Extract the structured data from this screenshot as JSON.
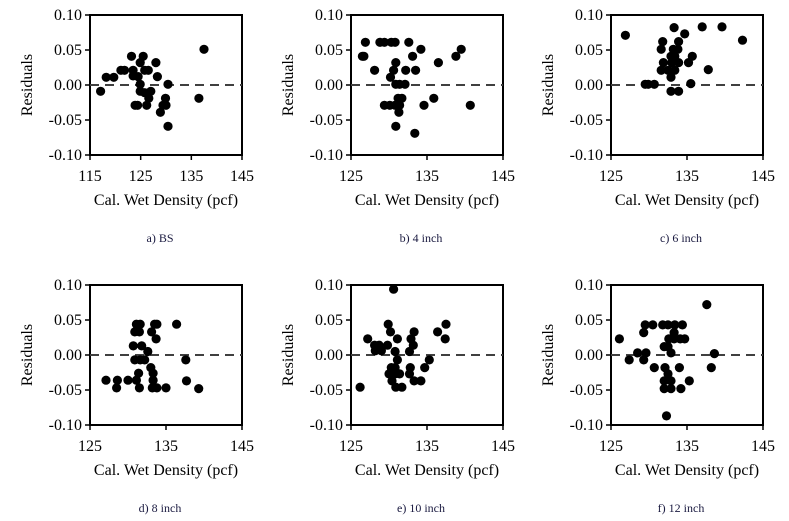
{
  "figure": {
    "marker_color": "#000000",
    "zero_line_color": "#404040",
    "caption_color": "#1a1a40"
  },
  "chart_data": [
    {
      "type": "scatter",
      "caption": "a) BS",
      "xlabel": "Cal. Wet Density (pcf)",
      "ylabel": "Residuals",
      "xlim": [
        115,
        145
      ],
      "ylim": [
        -0.1,
        0.1
      ],
      "xticks": [
        "115",
        "125",
        "135",
        "145"
      ],
      "xtick_values": [
        115,
        125,
        135,
        145
      ],
      "yticks": [
        "0.10",
        "0.05",
        "0.00",
        "-0.05",
        "-0.10"
      ],
      "ytick_values": [
        0.1,
        0.05,
        0.0,
        -0.05,
        -0.1
      ],
      "reference_line": {
        "y": 0,
        "style": "dashed"
      },
      "grid": false,
      "points": [
        [
          117.1,
          -0.009
        ],
        [
          118.2,
          0.011
        ],
        [
          119.7,
          0.011
        ],
        [
          121.1,
          0.021
        ],
        [
          121.8,
          0.021
        ],
        [
          123.2,
          0.041
        ],
        [
          125.5,
          0.041
        ],
        [
          124.9,
          0.032
        ],
        [
          128.0,
          0.032
        ],
        [
          123.5,
          0.021
        ],
        [
          125.8,
          0.021
        ],
        [
          126.5,
          0.021
        ],
        [
          123.5,
          0.013
        ],
        [
          124.5,
          0.012
        ],
        [
          128.3,
          0.012
        ],
        [
          124.9,
          0.001
        ],
        [
          130.4,
          0.001
        ],
        [
          124.9,
          -0.009
        ],
        [
          125.8,
          -0.011
        ],
        [
          127.0,
          -0.009
        ],
        [
          126.6,
          -0.019
        ],
        [
          129.9,
          -0.019
        ],
        [
          123.9,
          -0.029
        ],
        [
          124.4,
          -0.029
        ],
        [
          126.2,
          -0.029
        ],
        [
          129.4,
          -0.029
        ],
        [
          130.0,
          -0.029
        ],
        [
          128.9,
          -0.039
        ],
        [
          130.4,
          -0.059
        ],
        [
          136.5,
          -0.019
        ],
        [
          137.5,
          0.051
        ]
      ]
    },
    {
      "type": "scatter",
      "caption": "b) 4 inch",
      "xlabel": "Cal. Wet Density (pcf)",
      "ylabel": "Residuals",
      "xlim": [
        125,
        145
      ],
      "ylim": [
        -0.1,
        0.1
      ],
      "xticks": [
        "125",
        "135",
        "145"
      ],
      "xtick_values": [
        125,
        135,
        145
      ],
      "yticks": [
        "0.10",
        "0.05",
        "0.00",
        "-0.05",
        "-0.10"
      ],
      "ytick_values": [
        0.1,
        0.05,
        0.0,
        -0.05,
        -0.1
      ],
      "reference_line": {
        "y": 0,
        "style": "dashed"
      },
      "grid": false,
      "points": [
        [
          126.9,
          0.061
        ],
        [
          128.8,
          0.061
        ],
        [
          129.4,
          0.061
        ],
        [
          130.3,
          0.061
        ],
        [
          130.8,
          0.061
        ],
        [
          132.6,
          0.061
        ],
        [
          126.5,
          0.041
        ],
        [
          126.7,
          0.041
        ],
        [
          134.2,
          0.051
        ],
        [
          133.1,
          0.041
        ],
        [
          138.8,
          0.041
        ],
        [
          139.5,
          0.051
        ],
        [
          136.5,
          0.032
        ],
        [
          130.9,
          0.032
        ],
        [
          128.1,
          0.021
        ],
        [
          130.6,
          0.021
        ],
        [
          132.2,
          0.021
        ],
        [
          133.5,
          0.021
        ],
        [
          130.2,
          0.011
        ],
        [
          130.9,
          0.001
        ],
        [
          131.4,
          0.001
        ],
        [
          132.1,
          0.001
        ],
        [
          131.2,
          -0.019
        ],
        [
          131.7,
          -0.019
        ],
        [
          135.9,
          -0.019
        ],
        [
          129.4,
          -0.029
        ],
        [
          130.1,
          -0.029
        ],
        [
          130.8,
          -0.029
        ],
        [
          131.4,
          -0.029
        ],
        [
          134.6,
          -0.029
        ],
        [
          140.7,
          -0.029
        ],
        [
          131.3,
          -0.039
        ],
        [
          130.9,
          -0.059
        ],
        [
          133.4,
          -0.069
        ]
      ]
    },
    {
      "type": "scatter",
      "caption": "c) 6 inch",
      "xlabel": "Cal. Wet Density (pcf)",
      "ylabel": "Residuals",
      "xlim": [
        125,
        145
      ],
      "ylim": [
        -0.1,
        0.1
      ],
      "xticks": [
        "125",
        "135",
        "145"
      ],
      "xtick_values": [
        125,
        135,
        145
      ],
      "yticks": [
        "0.10",
        "0.05",
        "0.00",
        "-0.05",
        "-0.10"
      ],
      "ytick_values": [
        0.1,
        0.05,
        0.0,
        -0.05,
        -0.1
      ],
      "reference_line": {
        "y": 0,
        "style": "dashed"
      },
      "grid": false,
      "points": [
        [
          126.9,
          0.071
        ],
        [
          133.3,
          0.082
        ],
        [
          137.0,
          0.083
        ],
        [
          139.6,
          0.083
        ],
        [
          142.3,
          0.064
        ],
        [
          134.7,
          0.073
        ],
        [
          133.9,
          0.062
        ],
        [
          131.8,
          0.062
        ],
        [
          131.6,
          0.051
        ],
        [
          133.2,
          0.051
        ],
        [
          133.8,
          0.051
        ],
        [
          132.9,
          0.041
        ],
        [
          133.4,
          0.041
        ],
        [
          135.7,
          0.041
        ],
        [
          131.9,
          0.032
        ],
        [
          133.0,
          0.032
        ],
        [
          133.9,
          0.032
        ],
        [
          135.2,
          0.032
        ],
        [
          131.6,
          0.021
        ],
        [
          132.5,
          0.021
        ],
        [
          133.4,
          0.021
        ],
        [
          137.8,
          0.022
        ],
        [
          132.9,
          0.011
        ],
        [
          129.5,
          0.001
        ],
        [
          129.9,
          0.001
        ],
        [
          130.7,
          0.001
        ],
        [
          135.5,
          0.002
        ],
        [
          132.9,
          -0.009
        ],
        [
          133.9,
          -0.009
        ]
      ]
    },
    {
      "type": "scatter",
      "caption": "d) 8 inch",
      "xlabel": "Cal. Wet Density (pcf)",
      "ylabel": "Residuals",
      "xlim": [
        125,
        145
      ],
      "ylim": [
        -0.1,
        0.1
      ],
      "xticks": [
        "125",
        "135",
        "145"
      ],
      "xtick_values": [
        125,
        135,
        145
      ],
      "yticks": [
        "0.10",
        "0.05",
        "0.00",
        "-0.05",
        "-0.10"
      ],
      "ytick_values": [
        0.1,
        0.05,
        0.0,
        -0.05,
        -0.1
      ],
      "reference_line": {
        "y": 0,
        "style": "dashed"
      },
      "grid": false,
      "points": [
        [
          131.1,
          0.044
        ],
        [
          131.6,
          0.044
        ],
        [
          130.9,
          0.033
        ],
        [
          131.5,
          0.033
        ],
        [
          133.5,
          0.044
        ],
        [
          133.8,
          0.044
        ],
        [
          133.1,
          0.033
        ],
        [
          133.7,
          0.023
        ],
        [
          136.4,
          0.044
        ],
        [
          130.7,
          0.013
        ],
        [
          131.8,
          0.013
        ],
        [
          132.6,
          0.005
        ],
        [
          130.9,
          -0.007
        ],
        [
          131.6,
          -0.007
        ],
        [
          132.2,
          -0.007
        ],
        [
          133.0,
          -0.018
        ],
        [
          137.6,
          -0.007
        ],
        [
          131.4,
          -0.026
        ],
        [
          133.3,
          -0.026
        ],
        [
          127.1,
          -0.036
        ],
        [
          128.6,
          -0.036
        ],
        [
          130.0,
          -0.036
        ],
        [
          131.1,
          -0.036
        ],
        [
          133.3,
          -0.036
        ],
        [
          137.7,
          -0.037
        ],
        [
          128.5,
          -0.047
        ],
        [
          131.5,
          -0.047
        ],
        [
          133.2,
          -0.047
        ],
        [
          133.8,
          -0.047
        ],
        [
          135.0,
          -0.047
        ],
        [
          139.3,
          -0.048
        ]
      ]
    },
    {
      "type": "scatter",
      "caption": "e) 10 inch",
      "xlabel": "Cal. Wet Density (pcf)",
      "ylabel": "Residuals",
      "xlim": [
        125,
        145
      ],
      "ylim": [
        -0.1,
        0.1
      ],
      "xticks": [
        "125",
        "135",
        "145"
      ],
      "xtick_values": [
        125,
        135,
        145
      ],
      "yticks": [
        "0.10",
        "0.05",
        "0.00",
        "-0.05",
        "-0.10"
      ],
      "ytick_values": [
        0.1,
        0.05,
        0.0,
        -0.05,
        -0.1
      ],
      "reference_line": {
        "y": 0,
        "style": "dashed"
      },
      "grid": false,
      "points": [
        [
          130.6,
          0.094
        ],
        [
          129.9,
          0.044
        ],
        [
          137.5,
          0.044
        ],
        [
          130.2,
          0.033
        ],
        [
          133.3,
          0.033
        ],
        [
          136.4,
          0.033
        ],
        [
          127.2,
          0.023
        ],
        [
          131.1,
          0.023
        ],
        [
          132.9,
          0.023
        ],
        [
          137.4,
          0.023
        ],
        [
          128.1,
          0.014
        ],
        [
          128.7,
          0.014
        ],
        [
          129.8,
          0.014
        ],
        [
          133.2,
          0.014
        ],
        [
          128.2,
          0.006
        ],
        [
          129.0,
          0.006
        ],
        [
          130.8,
          0.005
        ],
        [
          132.7,
          0.005
        ],
        [
          131.1,
          -0.007
        ],
        [
          135.3,
          -0.007
        ],
        [
          134.7,
          -0.018
        ],
        [
          130.3,
          -0.018
        ],
        [
          130.8,
          -0.018
        ],
        [
          132.8,
          -0.018
        ],
        [
          130.0,
          -0.027
        ],
        [
          130.8,
          -0.027
        ],
        [
          131.4,
          -0.027
        ],
        [
          132.7,
          -0.027
        ],
        [
          130.4,
          -0.037
        ],
        [
          133.3,
          -0.037
        ],
        [
          134.2,
          -0.037
        ],
        [
          126.2,
          -0.046
        ],
        [
          130.9,
          -0.046
        ],
        [
          131.7,
          -0.046
        ]
      ]
    },
    {
      "type": "scatter",
      "caption": "f) 12 inch",
      "xlabel": "Cal. Wet Density (pcf)",
      "ylabel": "Residuals",
      "xlim": [
        125,
        145
      ],
      "ylim": [
        -0.1,
        0.1
      ],
      "xticks": [
        "125",
        "135",
        "145"
      ],
      "xtick_values": [
        125,
        135,
        145
      ],
      "yticks": [
        "0.10",
        "0.05",
        "0.00",
        "-0.05",
        "-0.10"
      ],
      "ytick_values": [
        0.1,
        0.05,
        0.0,
        -0.05,
        -0.1
      ],
      "reference_line": {
        "y": 0,
        "style": "dashed"
      },
      "grid": false,
      "points": [
        [
          137.6,
          0.072
        ],
        [
          129.5,
          0.043
        ],
        [
          130.5,
          0.043
        ],
        [
          131.8,
          0.043
        ],
        [
          132.5,
          0.043
        ],
        [
          133.4,
          0.043
        ],
        [
          134.4,
          0.043
        ],
        [
          129.3,
          0.032
        ],
        [
          133.3,
          0.032
        ],
        [
          126.1,
          0.023
        ],
        [
          132.6,
          0.023
        ],
        [
          133.3,
          0.023
        ],
        [
          134.1,
          0.023
        ],
        [
          134.7,
          0.023
        ],
        [
          132.0,
          0.012
        ],
        [
          132.5,
          0.012
        ],
        [
          128.5,
          0.003
        ],
        [
          129.6,
          0.003
        ],
        [
          132.9,
          0.003
        ],
        [
          138.6,
          0.002
        ],
        [
          127.4,
          -0.007
        ],
        [
          129.3,
          -0.007
        ],
        [
          130.7,
          -0.018
        ],
        [
          132.1,
          -0.018
        ],
        [
          134.0,
          -0.018
        ],
        [
          138.2,
          -0.018
        ],
        [
          132.5,
          -0.027
        ],
        [
          132.0,
          -0.037
        ],
        [
          132.9,
          -0.037
        ],
        [
          135.3,
          -0.037
        ],
        [
          132.0,
          -0.048
        ],
        [
          132.9,
          -0.048
        ],
        [
          134.2,
          -0.048
        ],
        [
          132.3,
          -0.087
        ]
      ]
    }
  ]
}
